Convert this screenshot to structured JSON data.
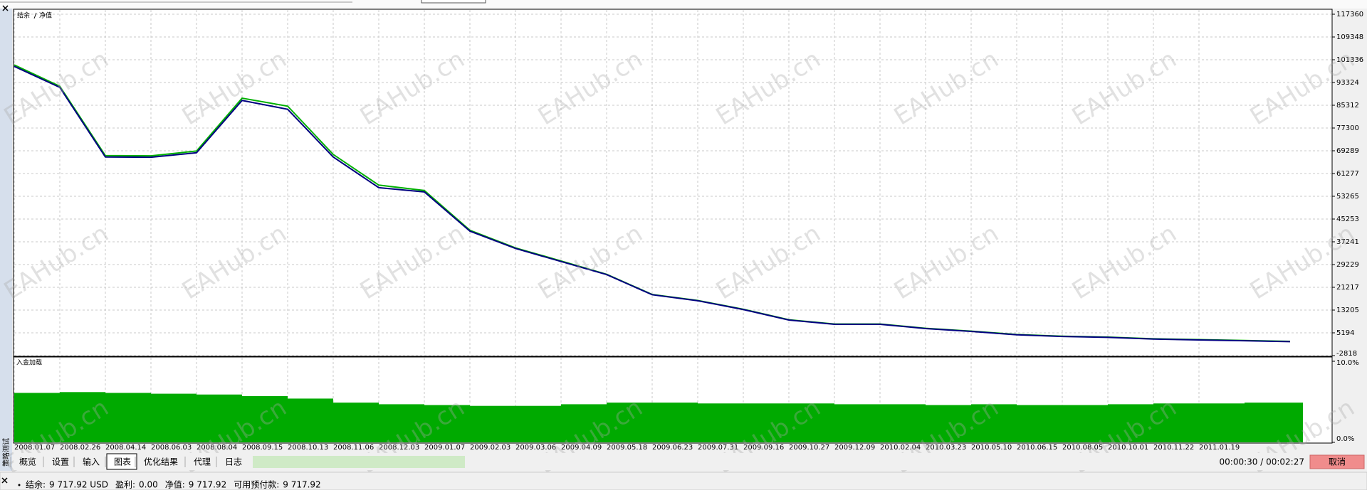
{
  "chart_data": [
    {
      "type": "line",
      "ylim": [
        -2818,
        117360
      ],
      "yticks": [
        117360,
        109348,
        101336,
        93324,
        85312,
        77300,
        69289,
        61277,
        53265,
        45253,
        37241,
        29229,
        21217,
        13205,
        5194,
        -2818
      ],
      "grid": true,
      "series": [
        {
          "name": "结余",
          "color": "#000080",
          "values": [
            99000,
            91600,
            67100,
            67000,
            68600,
            87000,
            83900,
            67100,
            56300,
            54800,
            41000,
            34900,
            30300,
            25700,
            18600,
            16500,
            13400,
            9700,
            8200,
            8200,
            6700,
            5700,
            4500,
            3900,
            3600,
            3000,
            2700,
            2400,
            2100
          ]
        },
        {
          "name": "净值",
          "color": "#00b000",
          "values": [
            99500,
            92000,
            67600,
            67500,
            69200,
            87800,
            85000,
            68000,
            57200,
            55300,
            41300,
            35100,
            30500,
            25800,
            18700,
            16600,
            13500,
            9800,
            8300,
            8300,
            6800,
            5800,
            4600,
            4000,
            3700,
            3100,
            2800,
            2500,
            2200
          ]
        }
      ]
    },
    {
      "type": "bar",
      "title": "入金加载",
      "color": "#00aa00",
      "categories": [
        "2008.01.07",
        "2008.02.26",
        "2008.04.14",
        "2008.06.03",
        "2008.08.04",
        "2008.09.15",
        "2008.10.13",
        "2008.11.06",
        "2008.12.03",
        "2009.01.07",
        "2009.02.03",
        "2009.03.06",
        "2009.04.09",
        "2009.05.18",
        "2009.06.23",
        "2009.07.31",
        "2009.09.16",
        "2009.10.27",
        "2009.12.09",
        "2010.02.04",
        "2010.03.23",
        "2010.05.10",
        "2010.06.15",
        "2010.08.05",
        "2010.10.01",
        "2010.11.22",
        "2011.01.19",
        null,
        null
      ],
      "values": [
        6.1,
        6.2,
        6.1,
        6.0,
        5.9,
        5.7,
        5.4,
        4.9,
        4.7,
        4.6,
        4.5,
        4.5,
        4.7,
        4.9,
        4.9,
        4.8,
        4.8,
        4.8,
        4.7,
        4.7,
        4.6,
        4.7,
        4.6,
        4.6,
        4.7,
        4.8,
        4.8,
        4.9,
        4.9
      ],
      "ylim": [
        0,
        10
      ],
      "yticks": [
        {
          "value": 10,
          "label": "10.0%"
        },
        {
          "value": 0,
          "label": "0.0%"
        }
      ]
    }
  ],
  "side_title": "策略测试",
  "watermark": "EAHub.cn",
  "tabs": [
    "概览",
    "设置",
    "输入",
    "图表",
    "优化结果",
    "代理",
    "日志"
  ],
  "active_tab": 3,
  "elapsed": "00:00:30 / 00:02:27",
  "cancel_button": "取消",
  "status_bar": [
    {
      "label": "结余:",
      "value": "9 717.92 USD"
    },
    {
      "label": "盈利:",
      "value": "0.00"
    },
    {
      "label": "净值:",
      "value": "9 717.92"
    },
    {
      "label": "可用预付款:",
      "value": "9 717.92"
    }
  ]
}
